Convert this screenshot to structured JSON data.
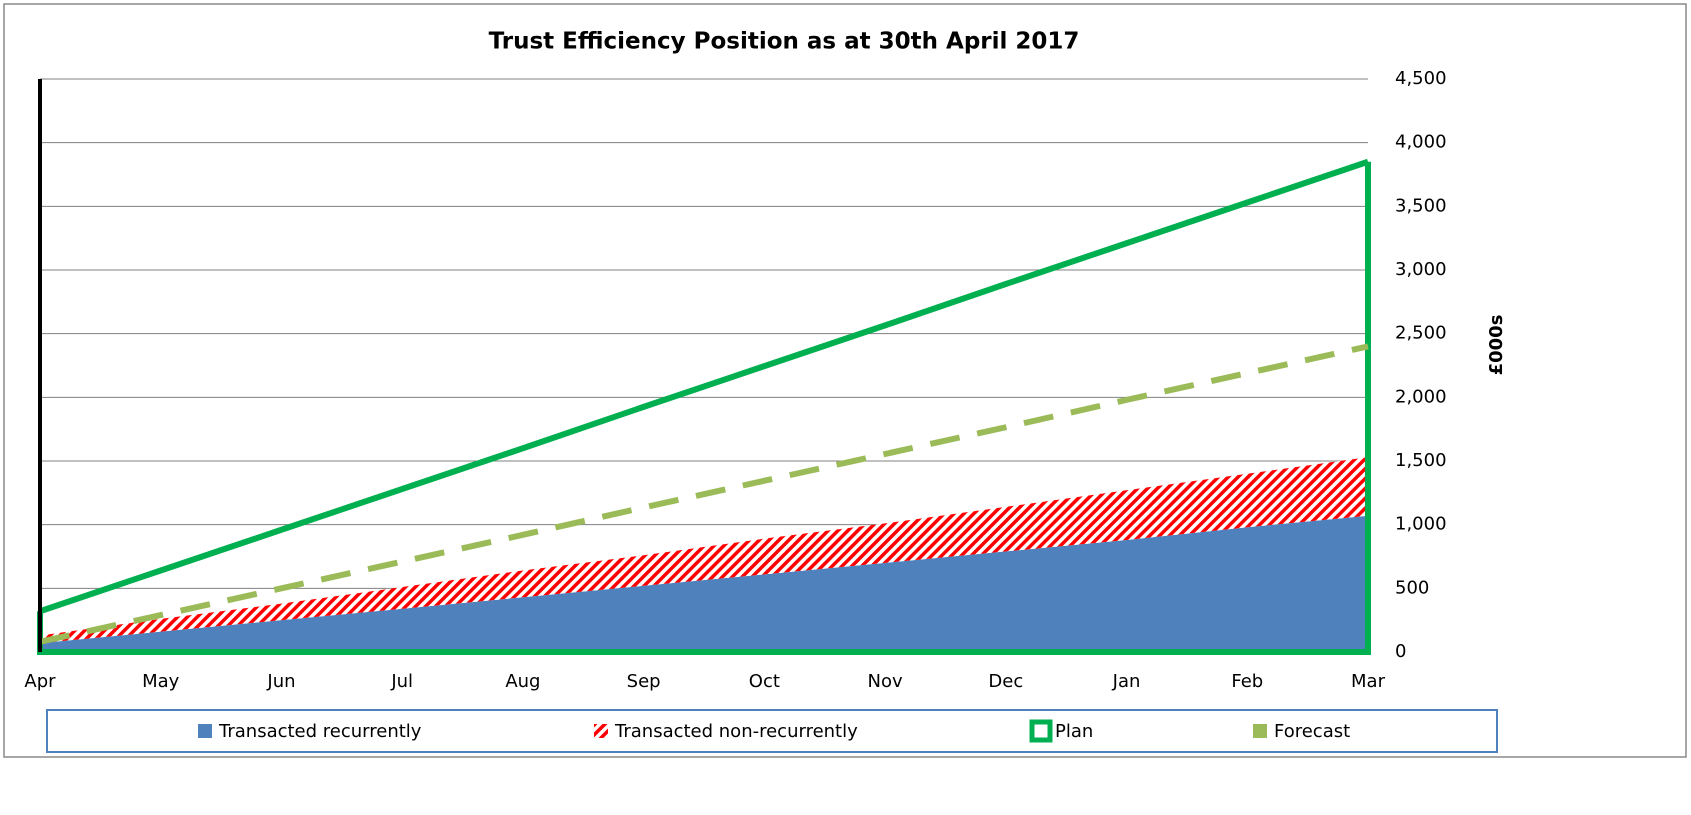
{
  "chart_data": {
    "type": "area",
    "title": "Trust Efficiency Position as at 30th April 2017",
    "y_label": "£000s",
    "categories": [
      "Apr",
      "May",
      "Jun",
      "Jul",
      "Aug",
      "Sep",
      "Oct",
      "Nov",
      "Dec",
      "Jan",
      "Feb",
      "Mar"
    ],
    "series": [
      {
        "name": "Transacted recurrently",
        "color": "#4f81bd",
        "stacked": true,
        "values": [
          70,
          160,
          250,
          340,
          430,
          520,
          610,
          700,
          790,
          880,
          980,
          1070
        ]
      },
      {
        "name": "Transacted non-recurrently",
        "color": "#ff0000",
        "stacked": true,
        "pattern": "hatch",
        "values": [
          60,
          100,
          130,
          170,
          210,
          240,
          280,
          310,
          350,
          390,
          420,
          460
        ]
      },
      {
        "name": "Plan",
        "color": "#00b050",
        "outline": true,
        "values": [
          320,
          640,
          960,
          1280,
          1600,
          1925,
          2245,
          2565,
          2890,
          3210,
          3530,
          3850
        ]
      },
      {
        "name": "Forecast",
        "color": "#9bbb59",
        "dashed": true,
        "values": [
          80,
          290,
          500,
          710,
          920,
          1135,
          1345,
          1555,
          1765,
          1980,
          2190,
          2400
        ]
      }
    ],
    "ylim": [
      0,
      4500
    ],
    "yticks": [
      0,
      500,
      {
        "value": 1000,
        "label": "1,000"
      },
      {
        "value": 1500,
        "label": "1,500"
      },
      {
        "value": 2000,
        "label": "2,000"
      },
      {
        "value": 2500,
        "label": "2,500"
      },
      {
        "value": 3000,
        "label": "3,000"
      },
      {
        "value": 3500,
        "label": "3,500"
      },
      {
        "value": 4000,
        "label": "4,000"
      },
      {
        "value": 4500,
        "label": "4,500"
      }
    ],
    "grid": true,
    "y_axis_side": "right",
    "legend": "bottom"
  }
}
